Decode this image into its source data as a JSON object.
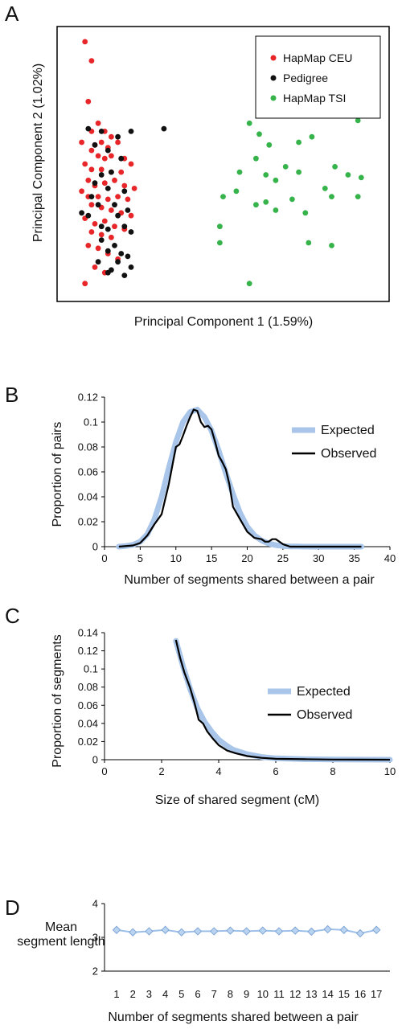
{
  "panels": {
    "a": "A",
    "b": "B",
    "c": "C",
    "d": "D"
  },
  "colors": {
    "ceu": "#e8262a",
    "pedigree": "#111111",
    "tsi": "#36b34a",
    "expected": "#a9c6ea",
    "observed": "#000000",
    "d_line": "#9ec0e8",
    "d_marker": "#b9d3f1"
  },
  "chart_data": [
    {
      "type": "scatter",
      "xlabel": "Principal Component 1 (1.59%)",
      "ylabel": "Principal Component 2 (1.02%)",
      "axis_ticks": "none",
      "legend": "top-right",
      "series": [
        {
          "name": "HapMap CEU",
          "points": [
            [
              8,
              95
            ],
            [
              10,
              88
            ],
            [
              9,
              73
            ],
            [
              12,
              65
            ],
            [
              10,
              62
            ],
            [
              14,
              62
            ],
            [
              16,
              60
            ],
            [
              7,
              58
            ],
            [
              11,
              57
            ],
            [
              13,
              58
            ],
            [
              15,
              56
            ],
            [
              18,
              58
            ],
            [
              10,
              55
            ],
            [
              12,
              53
            ],
            [
              14,
              52
            ],
            [
              16,
              53
            ],
            [
              20,
              52
            ],
            [
              22,
              50
            ],
            [
              8,
              50
            ],
            [
              10,
              48
            ],
            [
              13,
              48
            ],
            [
              16,
              47
            ],
            [
              19,
              47
            ],
            [
              9,
              44
            ],
            [
              11,
              42
            ],
            [
              14,
              43
            ],
            [
              17,
              44
            ],
            [
              20,
              42
            ],
            [
              23,
              41
            ],
            [
              7,
              40
            ],
            [
              9,
              38
            ],
            [
              12,
              38
            ],
            [
              15,
              37
            ],
            [
              18,
              38
            ],
            [
              21,
              37
            ],
            [
              10,
              35
            ],
            [
              13,
              34
            ],
            [
              16,
              33
            ],
            [
              19,
              32
            ],
            [
              22,
              31
            ],
            [
              8,
              30
            ],
            [
              11,
              28
            ],
            [
              14,
              29
            ],
            [
              17,
              27
            ],
            [
              20,
              26
            ],
            [
              10,
              25
            ],
            [
              13,
              24
            ],
            [
              16,
              23
            ],
            [
              9,
              20
            ],
            [
              12,
              19
            ],
            [
              15,
              17
            ],
            [
              18,
              15
            ],
            [
              11,
              12
            ],
            [
              14,
              10
            ],
            [
              8,
              6
            ]
          ]
        },
        {
          "name": "Pedigree",
          "points": [
            [
              9,
              63
            ],
            [
              13,
              62
            ],
            [
              18,
              60
            ],
            [
              22,
              62
            ],
            [
              32,
              63
            ],
            [
              11,
              57
            ],
            [
              15,
              55
            ],
            [
              19,
              52
            ],
            [
              13,
              46
            ],
            [
              16,
              47
            ],
            [
              11,
              43
            ],
            [
              15,
              41
            ],
            [
              20,
              40
            ],
            [
              10,
              38
            ],
            [
              12,
              35
            ],
            [
              17,
              35
            ],
            [
              7,
              32
            ],
            [
              9,
              31
            ],
            [
              18,
              31
            ],
            [
              21,
              33
            ],
            [
              13,
              27
            ],
            [
              15,
              26
            ],
            [
              20,
              27
            ],
            [
              22,
              25
            ],
            [
              13,
              22
            ],
            [
              17,
              20
            ],
            [
              15,
              18
            ],
            [
              19,
              17
            ],
            [
              21,
              16
            ],
            [
              12,
              14
            ],
            [
              18,
              14
            ],
            [
              22,
              12
            ],
            [
              15,
              10
            ],
            [
              20,
              9
            ],
            [
              16,
              11
            ]
          ]
        },
        {
          "name": "HapMap TSI",
          "points": [
            [
              58,
              65
            ],
            [
              61,
              61
            ],
            [
              64,
              57
            ],
            [
              73,
              58
            ],
            [
              91,
              66
            ],
            [
              77,
              60
            ],
            [
              60,
              52
            ],
            [
              55,
              47
            ],
            [
              63,
              46
            ],
            [
              69,
              49
            ],
            [
              66,
              44
            ],
            [
              73,
              47
            ],
            [
              84,
              49
            ],
            [
              81,
              41
            ],
            [
              88,
              46
            ],
            [
              92,
              45
            ],
            [
              50,
              38
            ],
            [
              54,
              40
            ],
            [
              60,
              35
            ],
            [
              63,
              36
            ],
            [
              66,
              33
            ],
            [
              71,
              37
            ],
            [
              75,
              32
            ],
            [
              83,
              38
            ],
            [
              91,
              38
            ],
            [
              49,
              27
            ],
            [
              49,
              21
            ],
            [
              76,
              21
            ],
            [
              83,
              20
            ],
            [
              58,
              6
            ]
          ]
        }
      ]
    },
    {
      "type": "line",
      "xlabel": "Number of segments shared between a pair",
      "ylabel": "Proportion of pairs",
      "xlim": [
        0,
        40
      ],
      "ylim": [
        0,
        0.12
      ],
      "xticks": [
        "0",
        "5",
        "10",
        "15",
        "20",
        "25",
        "30",
        "35",
        "40"
      ],
      "yticks": [
        "0",
        "0.02",
        "0.04",
        "0.06",
        "0.08",
        "0.1",
        "0.12"
      ],
      "legend": "top-right",
      "series": [
        {
          "name": "Expected",
          "x": [
            2,
            3,
            4,
            5,
            6,
            7,
            8,
            9,
            10,
            11,
            12,
            13,
            14,
            15,
            16,
            17,
            18,
            19,
            20,
            21,
            22,
            23,
            24,
            25,
            26,
            27,
            28,
            30,
            32,
            34,
            36
          ],
          "y": [
            0,
            0.0005,
            0.0015,
            0.004,
            0.01,
            0.022,
            0.04,
            0.063,
            0.084,
            0.1,
            0.108,
            0.11,
            0.104,
            0.093,
            0.077,
            0.059,
            0.042,
            0.027,
            0.016,
            0.009,
            0.005,
            0.0025,
            0.0012,
            0.0005,
            0.0002,
            0.0001,
            0,
            0,
            0,
            0,
            0
          ]
        },
        {
          "name": "Observed",
          "x": [
            2,
            4,
            5,
            6,
            7,
            8,
            9,
            10,
            10.5,
            11,
            11.5,
            12,
            12.5,
            13,
            13.5,
            14,
            14.5,
            15,
            15.5,
            16,
            16.5,
            17,
            17.5,
            18,
            19,
            20,
            21,
            22,
            22.5,
            23,
            23.5,
            24,
            25,
            26,
            28,
            30,
            32,
            34,
            36
          ],
          "y": [
            0,
            0.001,
            0.003,
            0.009,
            0.018,
            0.026,
            0.05,
            0.08,
            0.082,
            0.089,
            0.097,
            0.104,
            0.11,
            0.109,
            0.1,
            0.096,
            0.097,
            0.094,
            0.084,
            0.073,
            0.068,
            0.062,
            0.05,
            0.032,
            0.022,
            0.012,
            0.007,
            0.006,
            0.004,
            0.004,
            0.006,
            0.006,
            0.002,
            0,
            0,
            0,
            0,
            0,
            0
          ]
        }
      ]
    },
    {
      "type": "line",
      "xlabel": "Size of shared segment (cM)",
      "ylabel": "Proportion of segments",
      "xlim": [
        0,
        10
      ],
      "ylim": [
        0,
        0.14
      ],
      "xticks": [
        "0",
        "2",
        "4",
        "6",
        "8",
        "10"
      ],
      "yticks": [
        "0",
        "0.02",
        "0.04",
        "0.06",
        "0.08",
        "0.1",
        "0.12",
        "0.14"
      ],
      "legend": "top-right",
      "series": [
        {
          "name": "Expected",
          "x": [
            2.5,
            2.75,
            3,
            3.25,
            3.5,
            3.75,
            4,
            4.25,
            4.5,
            5,
            5.5,
            6,
            7,
            8,
            9,
            10
          ],
          "y": [
            0.131,
            0.103,
            0.078,
            0.057,
            0.042,
            0.031,
            0.022,
            0.016,
            0.011,
            0.006,
            0.003,
            0.0015,
            0.0005,
            0.0002,
            0.0001,
            0
          ]
        },
        {
          "name": "Observed",
          "x": [
            2.5,
            2.65,
            2.8,
            3,
            3.15,
            3.3,
            3.45,
            3.6,
            3.8,
            4,
            4.3,
            4.6,
            5,
            5.5,
            6,
            7,
            8,
            9,
            10
          ],
          "y": [
            0.132,
            0.112,
            0.096,
            0.079,
            0.063,
            0.044,
            0.04,
            0.031,
            0.023,
            0.016,
            0.01,
            0.007,
            0.004,
            0.002,
            0.001,
            0.0005,
            0.0002,
            0.0001,
            0
          ]
        }
      ]
    },
    {
      "type": "line",
      "xlabel": "Number of segments shared between a pair",
      "ylabel": "Mean segment length",
      "ylim": [
        2,
        4
      ],
      "yticks": [
        "2",
        "3",
        "4"
      ],
      "categories": [
        "1",
        "2",
        "3",
        "4",
        "5",
        "6",
        "7",
        "8",
        "9",
        "10",
        "11",
        "12",
        "13",
        "14",
        "15",
        "16",
        "17"
      ],
      "values": [
        3.22,
        3.15,
        3.18,
        3.22,
        3.15,
        3.18,
        3.18,
        3.2,
        3.18,
        3.2,
        3.18,
        3.2,
        3.17,
        3.24,
        3.22,
        3.12,
        3.22
      ]
    }
  ]
}
